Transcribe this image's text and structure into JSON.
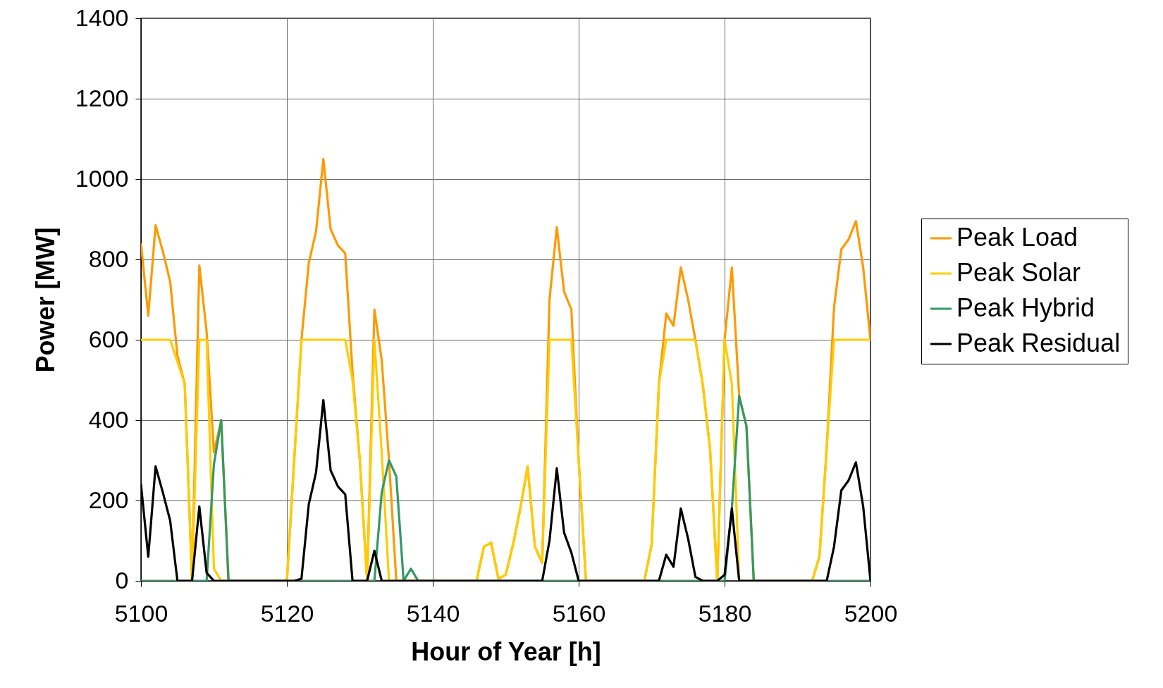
{
  "chart_data": {
    "type": "line",
    "xlabel": "Hour of Year [h]",
    "ylabel": "Power [MW]",
    "x": [
      5100,
      5101,
      5102,
      5103,
      5104,
      5105,
      5106,
      5107,
      5108,
      5109,
      5110,
      5111,
      5112,
      5113,
      5114,
      5115,
      5116,
      5117,
      5118,
      5119,
      5120,
      5121,
      5122,
      5123,
      5124,
      5125,
      5126,
      5127,
      5128,
      5129,
      5130,
      5131,
      5132,
      5133,
      5134,
      5135,
      5136,
      5137,
      5138,
      5139,
      5140,
      5141,
      5142,
      5143,
      5144,
      5145,
      5146,
      5147,
      5148,
      5149,
      5150,
      5151,
      5152,
      5153,
      5154,
      5155,
      5156,
      5157,
      5158,
      5159,
      5160,
      5161,
      5162,
      5163,
      5164,
      5165,
      5166,
      5167,
      5168,
      5169,
      5170,
      5171,
      5172,
      5173,
      5174,
      5175,
      5176,
      5177,
      5178,
      5179,
      5180,
      5181,
      5182,
      5183,
      5184,
      5185,
      5186,
      5187,
      5188,
      5189,
      5190,
      5191,
      5192,
      5193,
      5194,
      5195,
      5196,
      5197,
      5198,
      5199,
      5200
    ],
    "series": [
      {
        "name": "Peak Load",
        "color": "#ff9900",
        "values": [
          840,
          660,
          885,
          820,
          745,
          560,
          490,
          0,
          785,
          620,
          320,
          400,
          0,
          0,
          0,
          0,
          0,
          0,
          0,
          0,
          0,
          300,
          600,
          790,
          870,
          1050,
          875,
          835,
          815,
          520,
          300,
          0,
          675,
          550,
          300,
          0,
          0,
          0,
          0,
          0,
          0,
          0,
          0,
          0,
          0,
          0,
          0,
          85,
          95,
          5,
          15,
          90,
          180,
          285,
          85,
          45,
          700,
          880,
          720,
          675,
          300,
          0,
          0,
          0,
          0,
          0,
          0,
          0,
          0,
          0,
          90,
          490,
          665,
          635,
          780,
          700,
          600,
          490,
          330,
          0,
          600,
          780,
          460,
          385,
          0,
          0,
          0,
          0,
          0,
          0,
          0,
          0,
          0,
          60,
          330,
          680,
          825,
          850,
          895,
          780,
          600
        ]
      },
      {
        "name": "Peak Solar",
        "color": "#ffcc00",
        "values": [
          600,
          600,
          600,
          600,
          600,
          545,
          490,
          0,
          600,
          600,
          30,
          0,
          0,
          0,
          0,
          0,
          0,
          0,
          0,
          0,
          0,
          300,
          600,
          600,
          600,
          600,
          600,
          600,
          600,
          500,
          300,
          0,
          600,
          320,
          0,
          0,
          0,
          0,
          0,
          0,
          0,
          0,
          0,
          0,
          0,
          0,
          0,
          85,
          95,
          5,
          15,
          90,
          180,
          285,
          85,
          45,
          600,
          600,
          600,
          600,
          300,
          0,
          0,
          0,
          0,
          0,
          0,
          0,
          0,
          0,
          90,
          490,
          600,
          600,
          600,
          600,
          600,
          490,
          330,
          0,
          600,
          490,
          0,
          0,
          0,
          0,
          0,
          0,
          0,
          0,
          0,
          0,
          0,
          60,
          330,
          600,
          600,
          600,
          600,
          600,
          600
        ]
      },
      {
        "name": "Peak Hybrid",
        "color": "#339966",
        "values": [
          0,
          0,
          0,
          0,
          0,
          0,
          0,
          0,
          0,
          0,
          290,
          400,
          0,
          0,
          0,
          0,
          0,
          0,
          0,
          0,
          0,
          0,
          0,
          0,
          0,
          0,
          0,
          0,
          0,
          0,
          0,
          0,
          0,
          220,
          300,
          260,
          0,
          30,
          0,
          0,
          0,
          0,
          0,
          0,
          0,
          0,
          0,
          0,
          0,
          0,
          0,
          0,
          0,
          0,
          0,
          0,
          0,
          0,
          0,
          0,
          0,
          0,
          0,
          0,
          0,
          0,
          0,
          0,
          0,
          0,
          0,
          0,
          0,
          0,
          0,
          0,
          0,
          0,
          0,
          0,
          0,
          180,
          460,
          385,
          0,
          0,
          0,
          0,
          0,
          0,
          0,
          0,
          0,
          0,
          0,
          0,
          0,
          0,
          0,
          0,
          0
        ]
      },
      {
        "name": "Peak Residual",
        "color": "#000000",
        "values": [
          240,
          60,
          285,
          220,
          150,
          0,
          0,
          0,
          185,
          20,
          0,
          0,
          0,
          0,
          0,
          0,
          0,
          0,
          0,
          0,
          0,
          0,
          5,
          190,
          270,
          450,
          275,
          235,
          215,
          0,
          0,
          0,
          75,
          0,
          0,
          0,
          0,
          0,
          0,
          0,
          0,
          0,
          0,
          0,
          0,
          0,
          0,
          0,
          0,
          0,
          0,
          0,
          0,
          0,
          0,
          0,
          100,
          280,
          120,
          70,
          0,
          0,
          0,
          0,
          0,
          0,
          0,
          0,
          0,
          0,
          0,
          0,
          65,
          35,
          180,
          105,
          10,
          0,
          0,
          0,
          15,
          180,
          0,
          0,
          0,
          0,
          0,
          0,
          0,
          0,
          0,
          0,
          0,
          0,
          0,
          85,
          225,
          250,
          295,
          185,
          0
        ]
      }
    ],
    "xlim": [
      5100,
      5200
    ],
    "xticks": [
      5100,
      5120,
      5140,
      5160,
      5180,
      5200
    ],
    "ylim": [
      0,
      1400
    ],
    "yticks": [
      0,
      200,
      400,
      600,
      800,
      1000,
      1200,
      1400
    ],
    "grid": true,
    "legend": "right"
  }
}
